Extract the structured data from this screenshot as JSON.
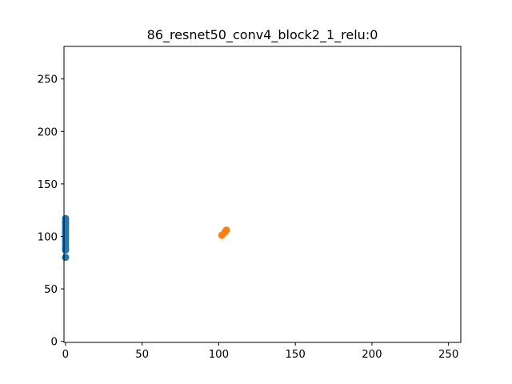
{
  "chart_data": {
    "type": "scatter",
    "title": "86_resnet50_conv4_block2_1_relu:0",
    "xlabel": "",
    "ylabel": "",
    "xlim": [
      -1,
      258
    ],
    "ylim": [
      -1,
      281
    ],
    "grid": false,
    "x_ticks": [
      0,
      50,
      100,
      150,
      200,
      250
    ],
    "y_ticks": [
      0,
      50,
      100,
      150,
      200,
      250
    ],
    "series": [
      {
        "color": "#1f77b4",
        "points": [
          [
            0,
            117
          ],
          [
            0,
            114
          ],
          [
            0,
            112
          ],
          [
            0,
            110
          ],
          [
            0,
            108
          ],
          [
            0,
            106
          ],
          [
            0,
            104
          ],
          [
            0,
            102
          ],
          [
            0,
            100
          ],
          [
            0,
            98
          ],
          [
            0,
            96
          ],
          [
            0,
            94
          ],
          [
            0,
            91
          ],
          [
            0,
            89
          ],
          [
            0,
            87
          ],
          [
            0,
            80
          ]
        ]
      },
      {
        "color": "#ff7f0e",
        "points": [
          [
            102,
            101
          ],
          [
            104,
            104
          ],
          [
            105,
            106
          ]
        ]
      }
    ]
  }
}
